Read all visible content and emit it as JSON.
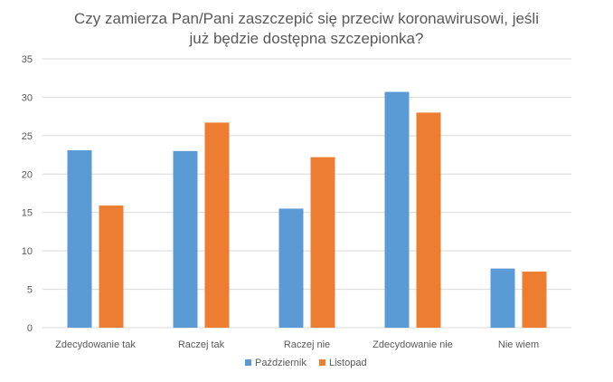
{
  "chart_data": {
    "type": "bar",
    "title": "Czy zamierza Pan/Pani zaszczepić się przeciw koronawirusowi, jeśli już będzie dostępna szczepionka?",
    "title_lines": [
      "Czy zamierza Pan/Pani zaszczepić się przeciw koronawirusowi, jeśli",
      "już będzie dostępna szczepionka?"
    ],
    "categories": [
      "Zdecydowanie tak",
      "Raczej tak",
      "Raczej nie",
      "Zdecydowanie nie",
      "Nie wiem"
    ],
    "series": [
      {
        "name": "Październik",
        "color": "#5B9BD5",
        "values": [
          23.1,
          23.0,
          15.5,
          30.7,
          7.7
        ]
      },
      {
        "name": "Listopad",
        "color": "#ED7D31",
        "values": [
          15.9,
          26.7,
          22.2,
          28.0,
          7.3
        ]
      }
    ],
    "ylim": [
      0,
      35
    ],
    "yticks": [
      0,
      5,
      10,
      15,
      20,
      25,
      30,
      35
    ],
    "grid": true,
    "legend": "bottom",
    "xlabel": "",
    "ylabel": ""
  }
}
